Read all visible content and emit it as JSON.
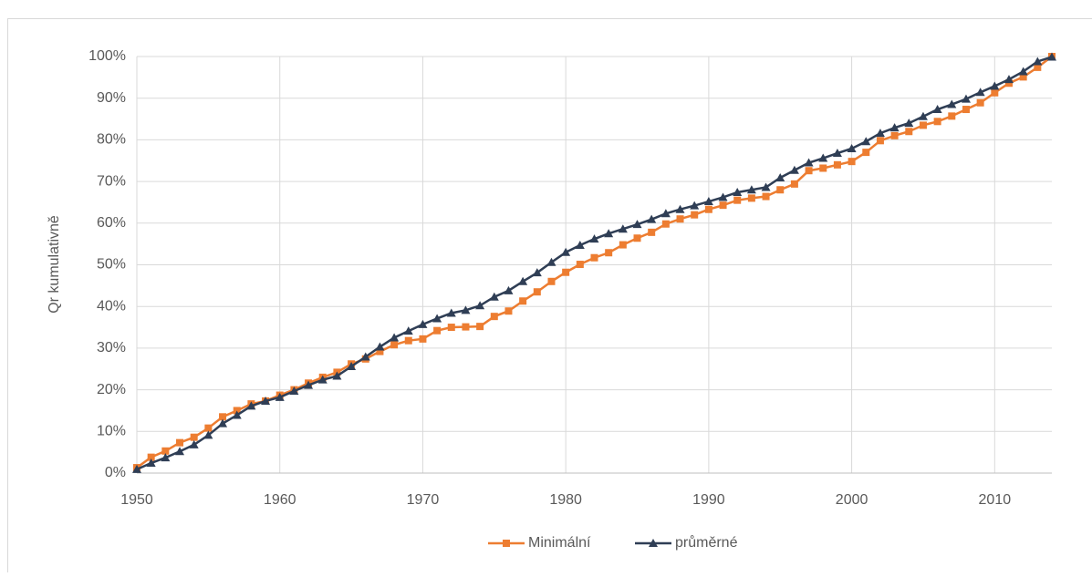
{
  "chart_data": {
    "type": "line",
    "y_label": "Qr kumulativně",
    "x": [
      1950,
      1951,
      1952,
      1953,
      1954,
      1955,
      1956,
      1957,
      1958,
      1959,
      1960,
      1961,
      1962,
      1963,
      1964,
      1965,
      1966,
      1967,
      1968,
      1969,
      1970,
      1971,
      1972,
      1973,
      1974,
      1975,
      1976,
      1977,
      1978,
      1979,
      1980,
      1981,
      1982,
      1983,
      1984,
      1985,
      1986,
      1987,
      1988,
      1989,
      1990,
      1991,
      1992,
      1993,
      1994,
      1995,
      1996,
      1997,
      1998,
      1999,
      2000,
      2001,
      2002,
      2003,
      2004,
      2005,
      2006,
      2007,
      2008,
      2009,
      2010,
      2011,
      2012,
      2013,
      2014
    ],
    "series": [
      {
        "name": "Minimální",
        "color": "#ed7d31",
        "marker": "square",
        "values": [
          1.3,
          3.8,
          5.3,
          7.3,
          8.6,
          10.8,
          13.5,
          15.0,
          16.6,
          17.3,
          18.7,
          20.0,
          21.6,
          23.0,
          24.2,
          26.2,
          27.4,
          29.2,
          30.8,
          31.8,
          32.2,
          34.2,
          35.0,
          35.1,
          35.2,
          37.6,
          38.9,
          41.3,
          43.5,
          46.0,
          48.2,
          50.1,
          51.7,
          52.9,
          54.8,
          56.4,
          57.8,
          59.8,
          61.0,
          62.0,
          63.3,
          64.3,
          65.5,
          66.0,
          66.4,
          68.0,
          69.4,
          72.6,
          73.2,
          74.0,
          74.8,
          77.0,
          79.8,
          81.0,
          82.0,
          83.5,
          84.4,
          85.7,
          87.3,
          88.9,
          91.3,
          93.6,
          95.1,
          97.4,
          100
        ]
      },
      {
        "name": "průměrné",
        "color": "#2f3e55",
        "marker": "triangle",
        "values": [
          0.9,
          2.4,
          3.7,
          5.2,
          6.8,
          9.1,
          11.9,
          13.9,
          16.1,
          17.3,
          18.2,
          19.7,
          21.1,
          22.4,
          23.3,
          25.6,
          27.9,
          30.3,
          32.5,
          34.1,
          35.7,
          37.1,
          38.4,
          39.1,
          40.2,
          42.3,
          43.8,
          46.0,
          48.1,
          50.6,
          53.0,
          54.7,
          56.2,
          57.5,
          58.6,
          59.7,
          60.9,
          62.3,
          63.3,
          64.2,
          65.2,
          66.2,
          67.4,
          68.0,
          68.6,
          70.9,
          72.7,
          74.5,
          75.6,
          76.8,
          77.9,
          79.6,
          81.6,
          82.9,
          84.0,
          85.6,
          87.3,
          88.5,
          89.8,
          91.4,
          92.9,
          94.5,
          96.4,
          98.8,
          99.9
        ]
      }
    ],
    "xlim": [
      1950,
      2014
    ],
    "xticks": [
      1950,
      1960,
      1970,
      1980,
      1990,
      2000,
      2010
    ],
    "ylim": [
      0,
      100
    ],
    "yticks": [
      {
        "value": 0,
        "label": "0%"
      },
      {
        "value": 10,
        "label": "10%"
      },
      {
        "value": 20,
        "label": "20%"
      },
      {
        "value": 30,
        "label": "30%"
      },
      {
        "value": 40,
        "label": "40%"
      },
      {
        "value": 50,
        "label": "50%"
      },
      {
        "value": 60,
        "label": "60%"
      },
      {
        "value": 70,
        "label": "70%"
      },
      {
        "value": 80,
        "label": "80%"
      },
      {
        "value": 90,
        "label": "90%"
      },
      {
        "value": 100,
        "label": "100%"
      }
    ],
    "grid": true,
    "legend": "bottom"
  }
}
